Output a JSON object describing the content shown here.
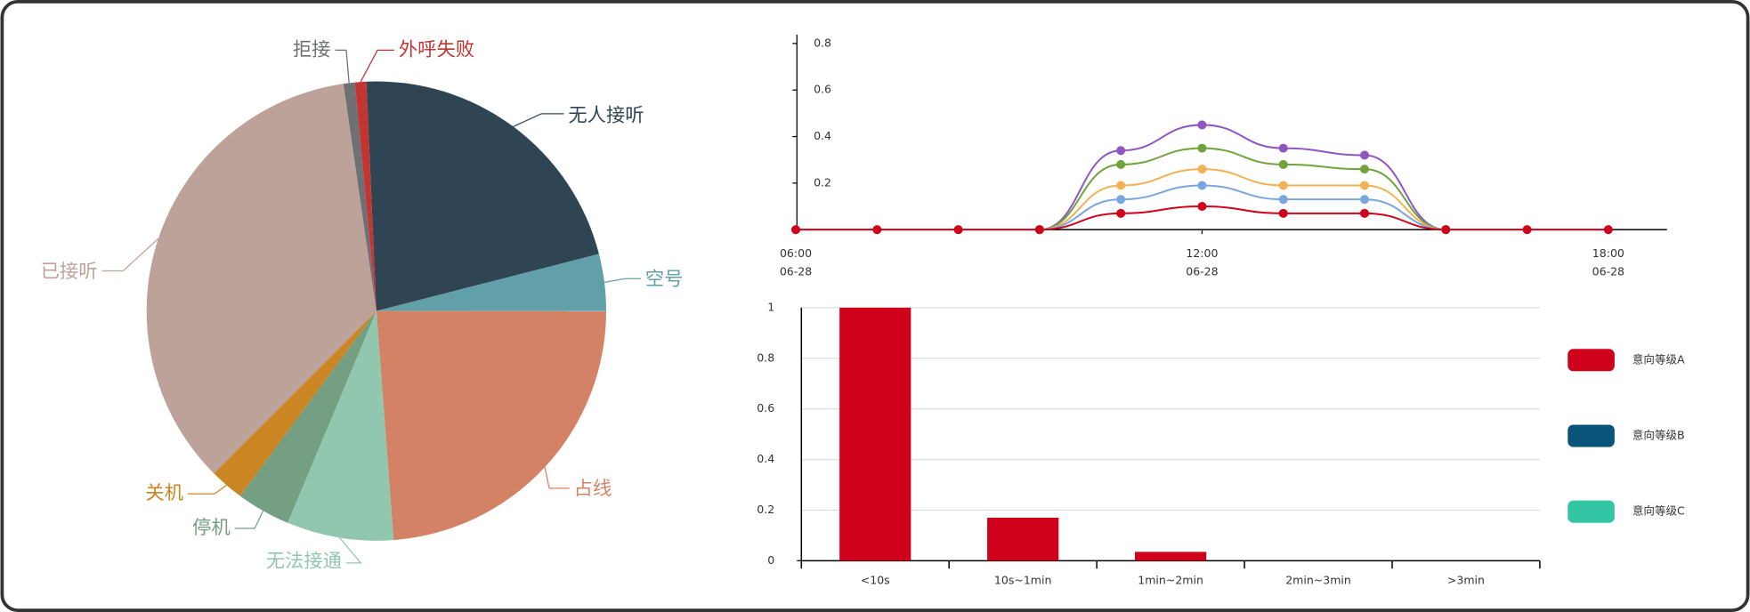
{
  "chart_data": [
    {
      "type": "pie",
      "categories": [
        "无人接听",
        "空号",
        "占线",
        "无法接通",
        "停机",
        "关机",
        "已接听",
        "拒接",
        "外呼失败"
      ],
      "values": [
        21.7,
        4.0,
        23.8,
        7.5,
        3.8,
        2.4,
        35.2,
        0.8,
        0.8
      ],
      "colors": [
        "#2f4554",
        "#61a0a8",
        "#d48265",
        "#91c7ae",
        "#749f83",
        "#ca8622",
        "#bda29a",
        "#6e7074",
        "#c23531"
      ]
    },
    {
      "type": "line",
      "stacked": true,
      "smooth": true,
      "x": [
        "06-28 06:00",
        "06-28 07:12",
        "06-28 08:24",
        "06-28 09:36",
        "06-28 10:48",
        "06-28 12:00",
        "06-28 13:12",
        "06-28 14:24",
        "06-28 15:36",
        "06-28 16:48",
        "06-28 18:00"
      ],
      "xlim": [
        "06-28 06:00",
        "06-28 18:52"
      ],
      "xticks": [
        {
          "value": "06-28 06:00",
          "label": [
            "06:00",
            "06-28"
          ]
        },
        {
          "value": "06-28 12:00",
          "label": [
            "12:00",
            "06-28"
          ]
        },
        {
          "value": "06-28 18:00",
          "label": [
            "18:00",
            "06-28"
          ]
        }
      ],
      "ylim": [
        0,
        0.8
      ],
      "yticks": [
        0.2,
        0.4,
        0.6,
        0.8
      ],
      "series": [
        {
          "color": "#d0021b",
          "values": [
            0,
            0,
            0,
            0,
            0.07,
            0.1,
            0.07,
            0.07,
            0,
            0,
            0
          ]
        },
        {
          "color": "#7aa6e0",
          "values": [
            null,
            null,
            null,
            0,
            0.06,
            0.09,
            0.06,
            0.06,
            0,
            null,
            null
          ]
        },
        {
          "color": "#f2b155",
          "values": [
            null,
            null,
            null,
            0,
            0.06,
            0.07,
            0.06,
            0.06,
            0,
            null,
            null
          ]
        },
        {
          "color": "#6fa33c",
          "values": [
            null,
            null,
            null,
            0,
            0.09,
            0.09,
            0.09,
            0.07,
            0,
            null,
            null
          ]
        },
        {
          "color": "#9155c2",
          "values": [
            null,
            null,
            null,
            0,
            0.06,
            0.1,
            0.07,
            0.06,
            0,
            null,
            null
          ]
        }
      ]
    },
    {
      "type": "bar",
      "grid": true,
      "legend": "right",
      "categories": [
        "<10s",
        "10s~1min",
        "1min~2min",
        "2min~3min",
        ">3min"
      ],
      "ylim": [
        0,
        1
      ],
      "yticks": [
        0,
        0.2,
        0.4,
        0.6,
        0.8,
        1
      ],
      "series": [
        {
          "name": "意向等级A",
          "color": "#d0021b",
          "values": [
            1,
            0.17,
            0.035,
            0,
            0
          ]
        },
        {
          "name": "意向等级B",
          "color": "#0b5479",
          "values": [
            0,
            0,
            0,
            0,
            0
          ]
        },
        {
          "name": "意向等级C",
          "color": "#34c6a4",
          "values": [
            0,
            0,
            0,
            0,
            0
          ]
        }
      ]
    }
  ]
}
